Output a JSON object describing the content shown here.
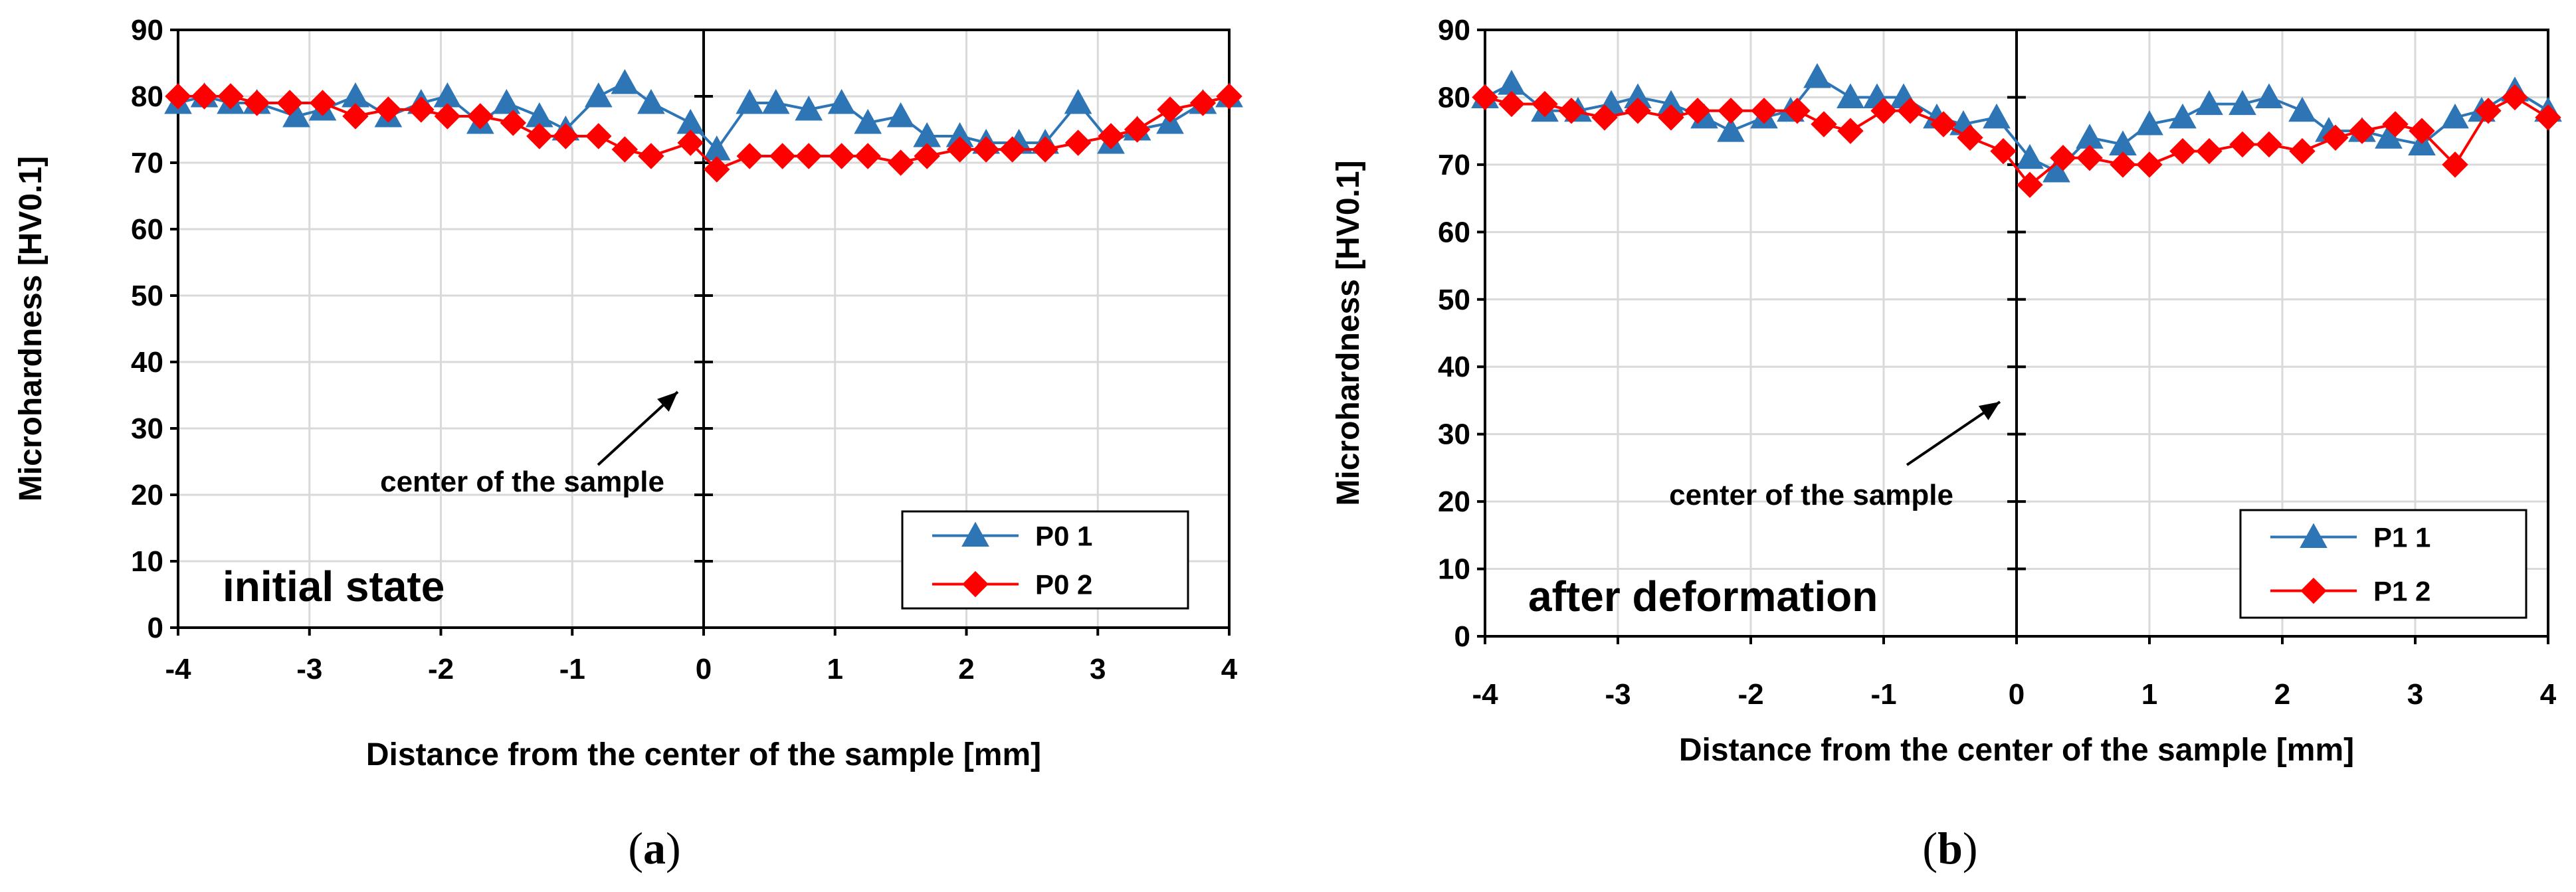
{
  "figure": {
    "captions": [
      {
        "open": "(",
        "letter": "a",
        "close": ")"
      },
      {
        "open": "(",
        "letter": "b",
        "close": ")"
      }
    ]
  },
  "chart_data": [
    {
      "type": "line",
      "panel": "a",
      "xlabel": "Distance from the center of the sample [mm]",
      "ylabel": "Microhardness [HV0.1]",
      "xlim": [
        -4,
        4
      ],
      "ylim": [
        0,
        90
      ],
      "xticks": [
        -4,
        -3,
        -2,
        -1,
        0,
        1,
        2,
        3,
        4
      ],
      "yticks": [
        0,
        10,
        20,
        30,
        40,
        50,
        60,
        70,
        80,
        90
      ],
      "grid": true,
      "legend_position": "bottom-right",
      "state_label": "initial state",
      "annotation": "center of the sample",
      "series": [
        {
          "name": "P0 1",
          "color": "#2E75B6",
          "marker": "triangle",
          "x": [
            -4,
            -3.8,
            -3.6,
            -3.4,
            -3.1,
            -2.9,
            -2.65,
            -2.4,
            -2.15,
            -1.95,
            -1.7,
            -1.5,
            -1.25,
            -1.05,
            -0.8,
            -0.6,
            -0.4,
            -0.1,
            0.1,
            0.35,
            0.55,
            0.8,
            1.05,
            1.25,
            1.5,
            1.7,
            1.95,
            2.15,
            2.4,
            2.6,
            2.85,
            3.1,
            3.3,
            3.55,
            3.8,
            4
          ],
          "y": [
            79,
            80,
            79,
            79,
            77,
            78,
            80,
            77,
            79,
            80,
            76,
            79,
            77,
            75,
            80,
            82,
            79,
            76,
            72,
            79,
            79,
            78,
            79,
            76,
            77,
            74,
            74,
            73,
            73,
            73,
            79,
            73,
            75,
            76,
            79,
            80
          ]
        },
        {
          "name": "P0 2",
          "color": "#FF0000",
          "marker": "diamond",
          "x": [
            -4,
            -3.8,
            -3.6,
            -3.4,
            -3.15,
            -2.9,
            -2.65,
            -2.4,
            -2.15,
            -1.95,
            -1.7,
            -1.45,
            -1.25,
            -1.05,
            -0.8,
            -0.6,
            -0.4,
            -0.1,
            0.1,
            0.35,
            0.6,
            0.8,
            1.05,
            1.25,
            1.5,
            1.7,
            1.95,
            2.15,
            2.35,
            2.6,
            2.85,
            3.1,
            3.3,
            3.55,
            3.8,
            4
          ],
          "y": [
            80,
            80,
            80,
            79,
            79,
            79,
            77,
            78,
            78,
            77,
            77,
            76,
            74,
            74,
            74,
            72,
            71,
            73,
            69,
            71,
            71,
            71,
            71,
            71,
            70,
            71,
            72,
            72,
            72,
            72,
            73,
            74,
            75,
            78,
            79,
            80
          ]
        }
      ]
    },
    {
      "type": "line",
      "panel": "b",
      "xlabel": "Distance from the center of the sample [mm]",
      "ylabel": "Microhardness [HV0.1]",
      "xlim": [
        -4,
        4
      ],
      "ylim": [
        0,
        90
      ],
      "xticks": [
        -4,
        -3,
        -2,
        -1,
        0,
        1,
        2,
        3,
        4
      ],
      "yticks": [
        0,
        10,
        20,
        30,
        40,
        50,
        60,
        70,
        80,
        90
      ],
      "grid": true,
      "legend_position": "bottom-right",
      "state_label": "after deformation",
      "annotation": "center of the sample",
      "series": [
        {
          "name": "P1 1",
          "color": "#2E75B6",
          "marker": "triangle",
          "x": [
            -4,
            -3.8,
            -3.55,
            -3.3,
            -3.05,
            -2.85,
            -2.6,
            -2.35,
            -2.15,
            -1.9,
            -1.7,
            -1.5,
            -1.25,
            -1.05,
            -0.85,
            -0.6,
            -0.4,
            -0.15,
            0.1,
            0.3,
            0.55,
            0.8,
            1.0,
            1.25,
            1.45,
            1.7,
            1.9,
            2.15,
            2.35,
            2.6,
            2.8,
            3.05,
            3.3,
            3.5,
            3.75,
            4
          ],
          "y": [
            80,
            82,
            78,
            78,
            79,
            80,
            79,
            77,
            75,
            77,
            78,
            83,
            80,
            80,
            80,
            77,
            76,
            77,
            71,
            69,
            74,
            73,
            76,
            77,
            79,
            79,
            80,
            78,
            75,
            75,
            74,
            73,
            77,
            78,
            81,
            78
          ]
        },
        {
          "name": "P1 2",
          "color": "#FF0000",
          "marker": "diamond",
          "x": [
            -4,
            -3.8,
            -3.55,
            -3.35,
            -3.1,
            -2.85,
            -2.6,
            -2.4,
            -2.15,
            -1.9,
            -1.65,
            -1.45,
            -1.25,
            -1.0,
            -0.8,
            -0.55,
            -0.35,
            -0.1,
            0.1,
            0.35,
            0.55,
            0.8,
            1.0,
            1.25,
            1.45,
            1.7,
            1.9,
            2.15,
            2.4,
            2.6,
            2.85,
            3.05,
            3.3,
            3.55,
            3.75,
            4
          ],
          "y": [
            80,
            79,
            79,
            78,
            77,
            78,
            77,
            78,
            78,
            78,
            78,
            76,
            75,
            78,
            78,
            76,
            74,
            72,
            67,
            71,
            71,
            70,
            70,
            72,
            72,
            73,
            73,
            72,
            74,
            75,
            76,
            75,
            70,
            78,
            80,
            77
          ]
        }
      ]
    }
  ]
}
